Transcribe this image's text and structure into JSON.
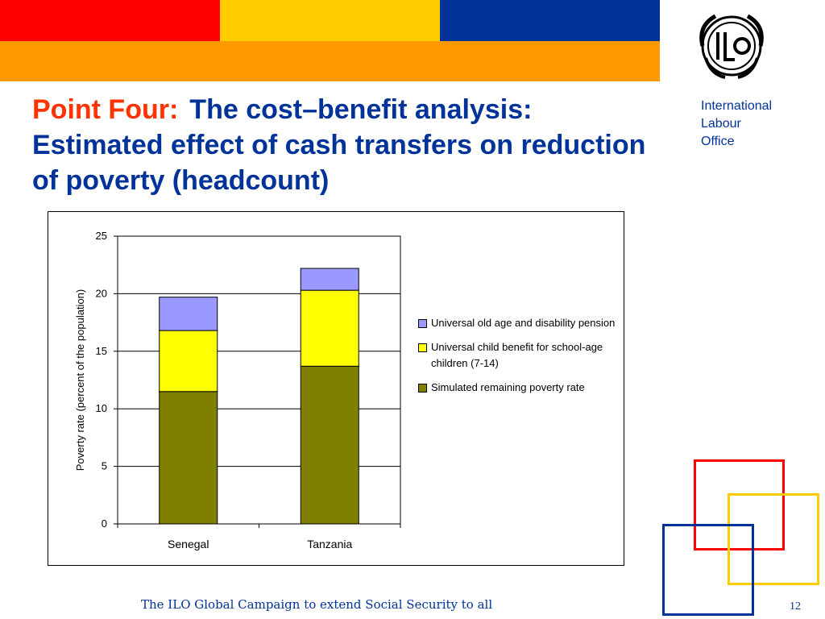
{
  "slide": {
    "title_lead": "Point Four:",
    "title_rest": "The cost–benefit analysis: Estimated effect of cash transfers on reduction of poverty (headcount)",
    "footer": "The ILO Global Campaign to extend Social Security to all",
    "page_number": "12",
    "org_lines": [
      "International",
      "Labour",
      "Office"
    ],
    "logo_icon": "ilo-logo-icon"
  },
  "colors": {
    "red": "#ff0000",
    "yellow": "#ffcc00",
    "blue": "#003399",
    "orange": "#ff9900",
    "title_red": "#ff3300",
    "title_blue": "#003399",
    "frame_yellow": "#ffcc00",
    "frame_blue": "#003399"
  },
  "chart_data": {
    "type": "bar",
    "stacked": true,
    "categories": [
      "Senegal",
      "Tanzania"
    ],
    "series": [
      {
        "name": "Simulated remaining poverty rate",
        "values": [
          11.5,
          13.7
        ],
        "color": "#808000"
      },
      {
        "name": "Universal child benefit for school-age children (7-14)",
        "values": [
          5.3,
          6.6
        ],
        "color": "#ffff00"
      },
      {
        "name": "Universal old age and disability pension",
        "values": [
          2.9,
          1.9
        ],
        "color": "#9999ff"
      }
    ],
    "legend_order": [
      2,
      1,
      0
    ],
    "ylabel": "Poverty rate (percent of the population)",
    "xlabel": "",
    "ylim": [
      0,
      25
    ],
    "yticks": [
      0,
      5,
      10,
      15,
      20,
      25
    ],
    "grid": true,
    "legend_position": "right"
  }
}
